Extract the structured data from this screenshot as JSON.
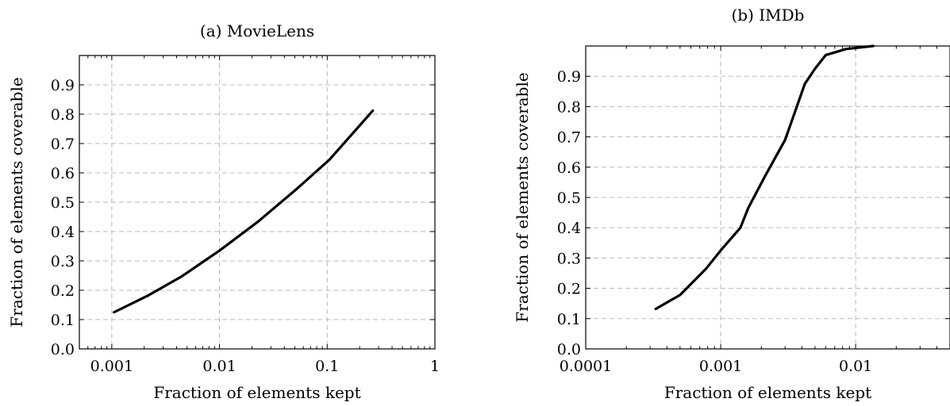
{
  "chart_data": [
    {
      "type": "line",
      "title": "(a) MovieLens",
      "xlabel": "Fraction of elements kept",
      "ylabel": "Fraction of elements coverable",
      "xscale": "log",
      "xlim": [
        0.0005,
        1
      ],
      "ylim": [
        0,
        1
      ],
      "xticks": [
        0.001,
        0.01,
        0.1,
        1
      ],
      "xtick_labels": [
        "0.001",
        "0.01",
        "0.1",
        "1"
      ],
      "yticks": [
        0,
        0.1,
        0.2,
        0.3,
        0.4,
        0.5,
        0.6,
        0.7,
        0.8,
        0.9
      ],
      "ytick_labels": [
        "0.0",
        "0.1",
        "0.2",
        "0.3",
        "0.4",
        "0.5",
        "0.6",
        "0.7",
        "0.8",
        "0.9"
      ],
      "grid": true,
      "series": [
        {
          "x": [
            0.00105,
            0.0022,
            0.0045,
            0.01,
            0.023,
            0.052,
            0.105,
            0.265
          ],
          "y": [
            0.125,
            0.183,
            0.248,
            0.335,
            0.435,
            0.545,
            0.645,
            0.812
          ]
        }
      ]
    },
    {
      "type": "line",
      "title": "(b) IMDb",
      "xlabel": "Fraction of elements kept",
      "ylabel": "Fraction of elements coverable",
      "xscale": "log",
      "xlim": [
        0.0001,
        0.05
      ],
      "ylim": [
        0,
        1
      ],
      "xticks": [
        0.0001,
        0.001,
        0.01
      ],
      "xtick_labels": [
        "0.0001",
        "0.001",
        "0.01"
      ],
      "yticks": [
        0,
        0.1,
        0.2,
        0.3,
        0.4,
        0.5,
        0.6,
        0.7,
        0.8,
        0.9
      ],
      "ytick_labels": [
        "0.0",
        "0.1",
        "0.2",
        "0.3",
        "0.4",
        "0.5",
        "0.6",
        "0.7",
        "0.8",
        "0.9"
      ],
      "grid": true,
      "series": [
        {
          "x": [
            0.00033,
            0.0005,
            0.00078,
            0.001,
            0.0014,
            0.0016,
            0.0021,
            0.003,
            0.0036,
            0.0042,
            0.005,
            0.006,
            0.0085,
            0.0135
          ],
          "y": [
            0.132,
            0.178,
            0.265,
            0.325,
            0.4,
            0.465,
            0.565,
            0.69,
            0.79,
            0.875,
            0.925,
            0.97,
            0.99,
            1.0
          ]
        }
      ]
    }
  ]
}
